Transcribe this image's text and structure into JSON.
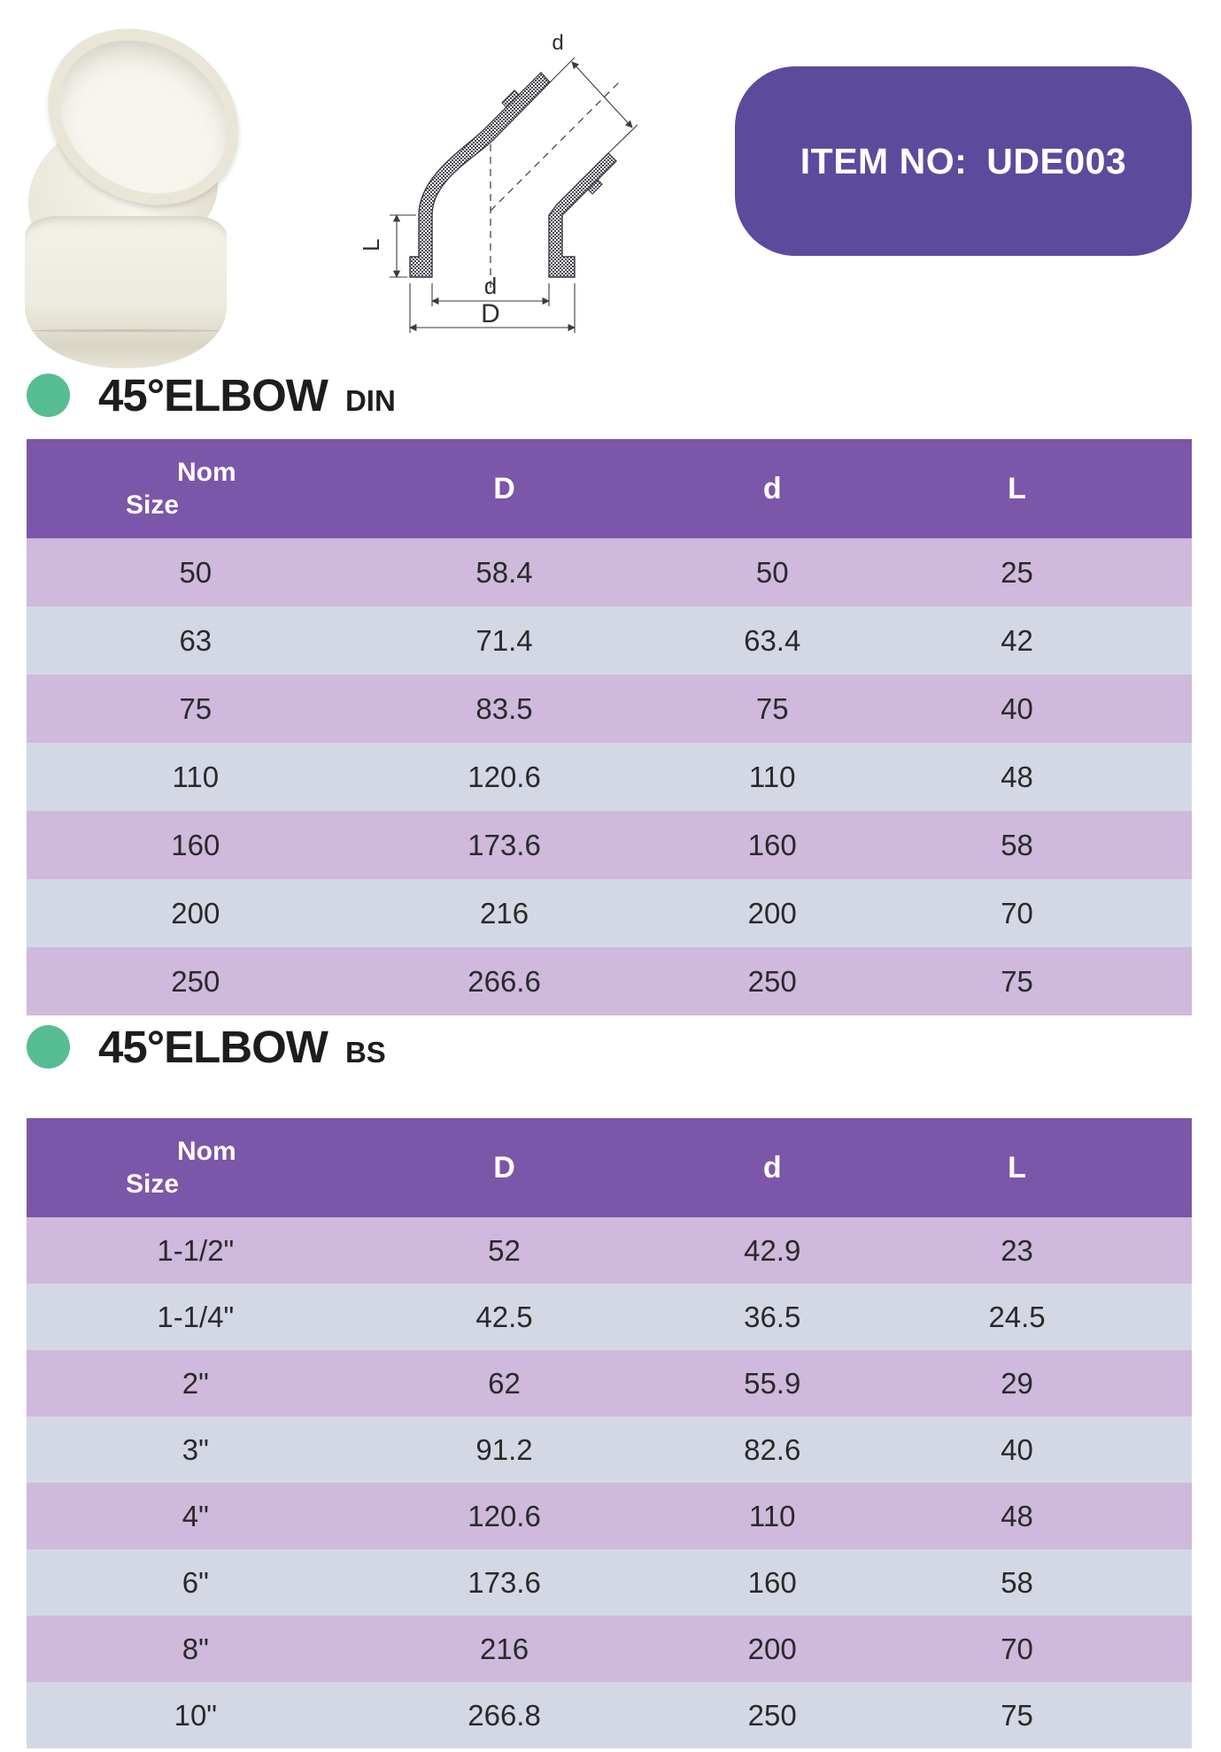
{
  "badge": {
    "label": "ITEM NO:",
    "code": "UDE003"
  },
  "drawing_labels": {
    "upper_d": "d",
    "length": "L",
    "inner_diameter": "d",
    "outer_diameter": "D"
  },
  "colors": {
    "header_purple": "#7C56A8",
    "row_lilac": "#CFB9DC",
    "row_gray": "#D4D8E5",
    "badge_purple": "#5C4A9C",
    "bullet_green": "#56BD92"
  },
  "sections": [
    {
      "title": "45°ELBOW",
      "standard": "DIN",
      "header": {
        "nom_line1": "Nom",
        "nom_line2": "Size",
        "cols": [
          "D",
          "d",
          "L"
        ]
      },
      "rows": [
        [
          "50",
          "58.4",
          "50",
          "25"
        ],
        [
          "63",
          "71.4",
          "63.4",
          "42"
        ],
        [
          "75",
          "83.5",
          "75",
          "40"
        ],
        [
          "110",
          "120.6",
          "110",
          "48"
        ],
        [
          "160",
          "173.6",
          "160",
          "58"
        ],
        [
          "200",
          "216",
          "200",
          "70"
        ],
        [
          "250",
          "266.6",
          "250",
          "75"
        ]
      ]
    },
    {
      "title": "45°ELBOW",
      "standard": "BS",
      "header": {
        "nom_line1": "Nom",
        "nom_line2": "Size",
        "cols": [
          "D",
          "d",
          "L"
        ]
      },
      "rows": [
        [
          "1-1/2\"",
          "52",
          "42.9",
          "23"
        ],
        [
          "1-1/4\"",
          "42.5",
          "36.5",
          "24.5"
        ],
        [
          "2\"",
          "62",
          "55.9",
          "29"
        ],
        [
          "3\"",
          "91.2",
          "82.6",
          "40"
        ],
        [
          "4\"",
          "120.6",
          "110",
          "48"
        ],
        [
          "6\"",
          "173.6",
          "160",
          "58"
        ],
        [
          "8\"",
          "216",
          "200",
          "70"
        ],
        [
          "10\"",
          "266.8",
          "250",
          "75"
        ]
      ]
    }
  ]
}
